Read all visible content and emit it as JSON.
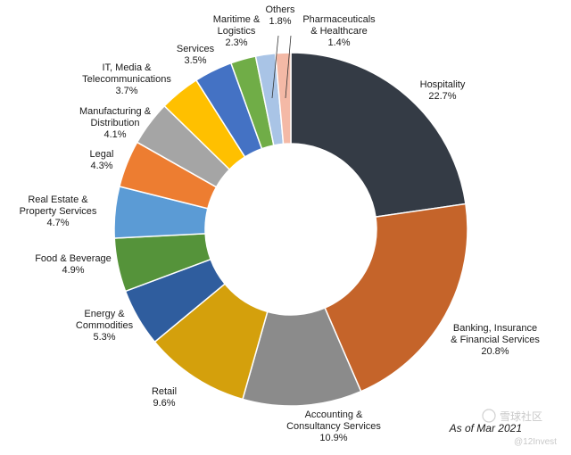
{
  "chart_data": {
    "type": "pie",
    "subtype": "donut",
    "title": "",
    "note": "As of Mar 2021",
    "unit": "%",
    "slices": [
      {
        "label": "Hospitality",
        "value": 22.7,
        "display": "22.7%",
        "color": "#343b45"
      },
      {
        "label": "Banking, Insurance & Financial Services",
        "value": 20.8,
        "display": "20.8%",
        "color": "#c5642a"
      },
      {
        "label": "Accounting & Consultancy Services",
        "value": 10.9,
        "display": "10.9%",
        "color": "#8b8b8b"
      },
      {
        "label": "Retail",
        "value": 9.6,
        "display": "9.6%",
        "color": "#d4a00c"
      },
      {
        "label": "Energy & Commodities",
        "value": 5.3,
        "display": "5.3%",
        "color": "#2f5d9e"
      },
      {
        "label": "Food & Beverage",
        "value": 4.9,
        "display": "4.9%",
        "color": "#55933a"
      },
      {
        "label": "Real Estate & Property Services",
        "value": 4.7,
        "display": "4.7%",
        "color": "#5b9bd5"
      },
      {
        "label": "Legal",
        "value": 4.3,
        "display": "4.3%",
        "color": "#ed7d31"
      },
      {
        "label": "Manufacturing & Distribution",
        "value": 4.1,
        "display": "4.1%",
        "color": "#a5a5a5"
      },
      {
        "label": "IT, Media & Telecommunications",
        "value": 3.7,
        "display": "3.7%",
        "color": "#ffc000"
      },
      {
        "label": "Services",
        "value": 3.5,
        "display": "3.5%",
        "color": "#4472c4"
      },
      {
        "label": "Maritime & Logistics",
        "value": 2.3,
        "display": "2.3%",
        "color": "#70ad47"
      },
      {
        "label": "Others",
        "value": 1.8,
        "display": "1.8%",
        "color": "#a9c4e6"
      },
      {
        "label": "Pharmaceuticals & Healthcare",
        "value": 1.4,
        "display": "1.4%",
        "color": "#f4b9a6"
      }
    ]
  },
  "watermark": {
    "text": "雪球社区",
    "handle": "@12Invest"
  }
}
